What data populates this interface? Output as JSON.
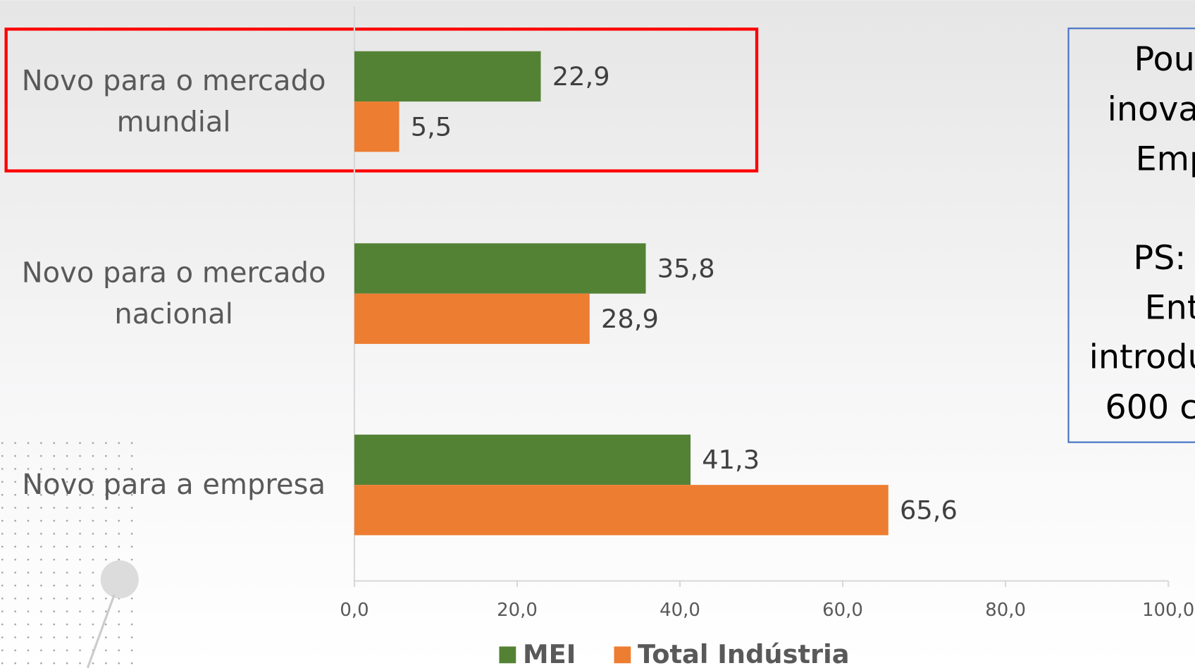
{
  "chart_data": {
    "type": "hbar",
    "categories": [
      "Novo para o mercado mundial",
      "Novo para o mercado nacional",
      "Novo para a empresa"
    ],
    "series": [
      {
        "name": "MEI",
        "color": "#548235",
        "values": [
          22.9,
          35.8,
          41.3
        ],
        "value_labels": [
          "22,9",
          "35,8",
          "41,3"
        ]
      },
      {
        "name": "Total Indústria",
        "color": "#ed7d31",
        "values": [
          5.5,
          28.9,
          65.6
        ],
        "value_labels": [
          "5,5",
          "28,9",
          "65,6"
        ]
      }
    ],
    "xlim": [
      0,
      100
    ],
    "xticks": [
      {
        "value": 0,
        "label": "0,0"
      },
      {
        "value": 20,
        "label": "20,0"
      },
      {
        "value": 40,
        "label": "40,0"
      },
      {
        "value": 60,
        "label": "60,0"
      },
      {
        "value": 80,
        "label": "80,0"
      },
      {
        "value": 100,
        "label": "100,0"
      }
    ],
    "legend": "bottom"
  },
  "annotations": [
    "Pou",
    "inova",
    "Emp",
    "PS:",
    "Ent",
    "introdu",
    "600 c"
  ]
}
